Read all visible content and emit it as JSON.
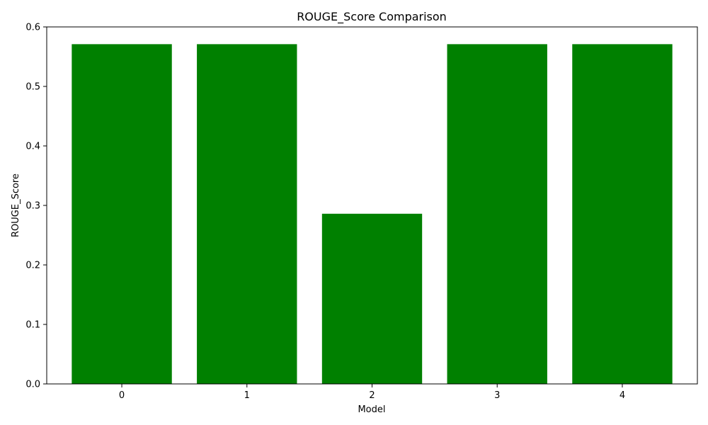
{
  "chart_data": {
    "type": "bar",
    "title": "ROUGE_Score Comparison",
    "xlabel": "Model",
    "ylabel": "ROUGE_Score",
    "categories": [
      "0",
      "1",
      "2",
      "3",
      "4"
    ],
    "values": [
      0.571,
      0.571,
      0.286,
      0.571,
      0.571
    ],
    "ylim": [
      0,
      0.6
    ],
    "yticks": [
      "0.0",
      "0.1",
      "0.2",
      "0.3",
      "0.4",
      "0.5",
      "0.6"
    ],
    "grid": false,
    "bar_color": "#008000"
  }
}
